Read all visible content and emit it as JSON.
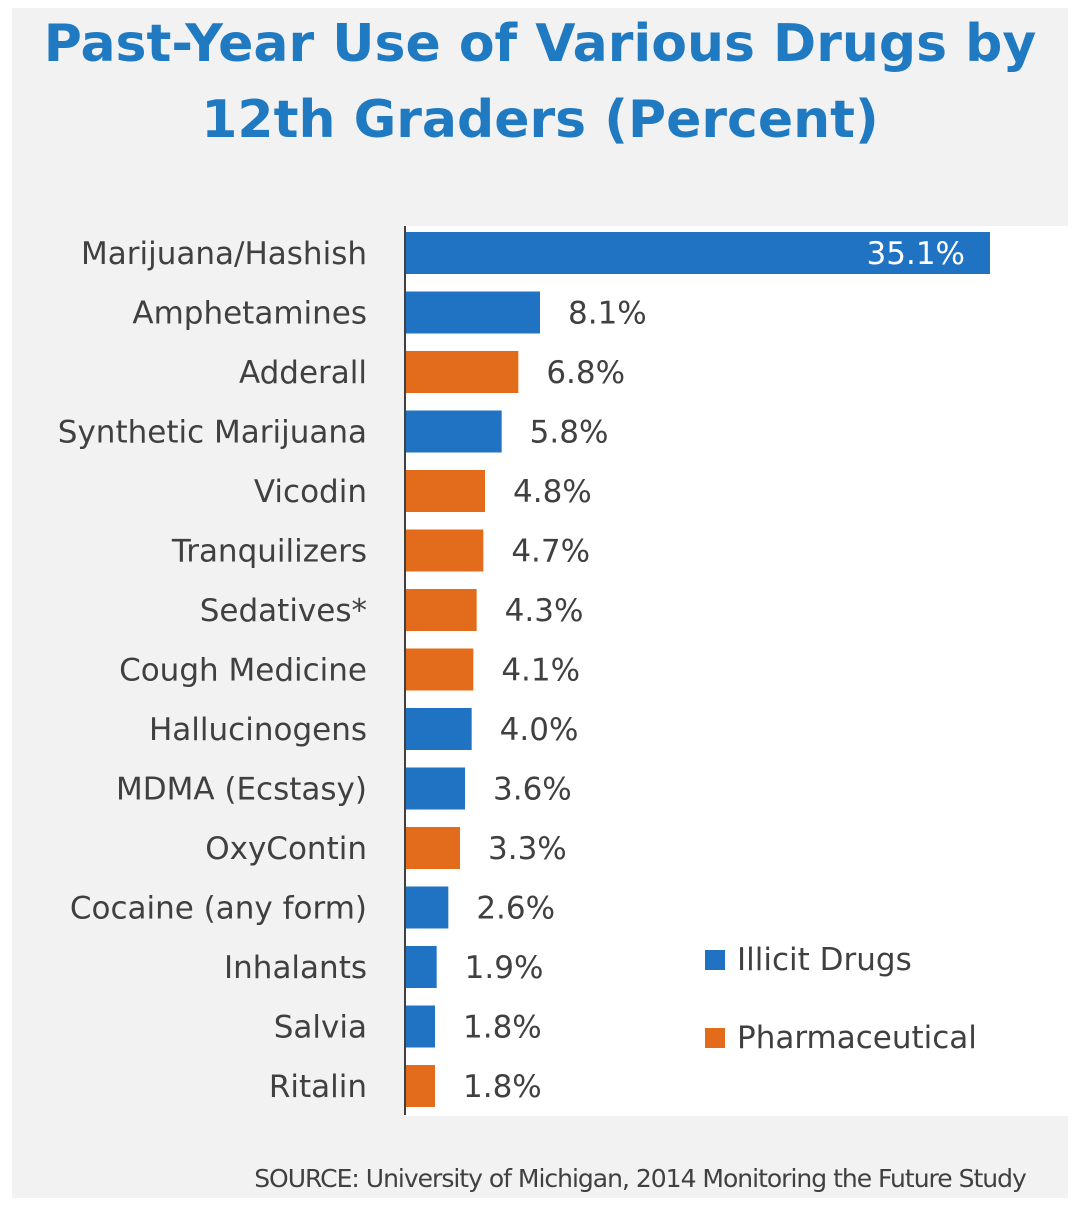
{
  "title_line1": "Past-Year Use of Various Drugs by",
  "title_line2": "12th Graders (Percent)",
  "source": "SOURCE: University of Michigan, 2014 Monitoring the Future Study",
  "colors": {
    "illicit": "#1f73c2",
    "pharmaceutical": "#e36c1c",
    "title": "#1f7ac1"
  },
  "legend": [
    {
      "label": "Illicit Drugs",
      "color": "#1f73c2"
    },
    {
      "label": "Pharmaceutical",
      "color": "#e36c1c"
    }
  ],
  "chart_data": {
    "type": "bar",
    "orientation": "horizontal",
    "title": "Past-Year Use of Various Drugs by 12th Graders (Percent)",
    "xlim": [
      0,
      37.5
    ],
    "grid": false,
    "legend_position": "bottom-right",
    "categories": [
      "Marijuana/Hashish",
      "Amphetamines",
      "Adderall",
      "Synthetic Marijuana",
      "Vicodin",
      "Tranquilizers",
      "Sedatives*",
      "Cough Medicine",
      "Hallucinogens",
      "MDMA (Ecstasy)",
      "OxyContin",
      "Cocaine (any form)",
      "Inhalants",
      "Salvia",
      "Ritalin"
    ],
    "values": [
      35.1,
      8.1,
      6.8,
      5.8,
      4.8,
      4.7,
      4.3,
      4.1,
      4.0,
      3.6,
      3.3,
      2.6,
      1.9,
      1.8,
      1.8
    ],
    "labels": [
      "35.1%",
      "8.1%",
      "6.8%",
      "5.8%",
      "4.8%",
      "4.7%",
      "4.3%",
      "4.1%",
      "4.0%",
      "3.6%",
      "3.3%",
      "2.6%",
      "1.9%",
      "1.8%",
      "1.8%"
    ],
    "groups": [
      "Illicit Drugs",
      "Illicit Drugs",
      "Pharmaceutical",
      "Illicit Drugs",
      "Pharmaceutical",
      "Pharmaceutical",
      "Pharmaceutical",
      "Pharmaceutical",
      "Illicit Drugs",
      "Illicit Drugs",
      "Pharmaceutical",
      "Illicit Drugs",
      "Illicit Drugs",
      "Illicit Drugs",
      "Pharmaceutical"
    ]
  }
}
